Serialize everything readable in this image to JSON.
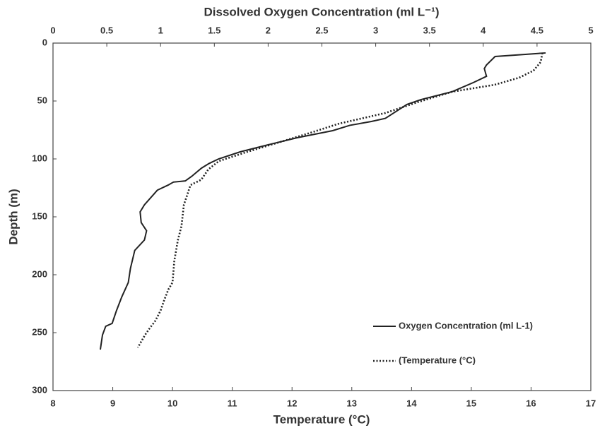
{
  "chart_data": {
    "type": "line",
    "x2label": "Dissolved Oxygen Concentration (ml L⁻¹)",
    "xlabel": "Temperature (°C)",
    "ylabel": "Depth (m)",
    "xlim": [
      8,
      17
    ],
    "xticks": [
      8,
      9,
      10,
      11,
      12,
      13,
      14,
      15,
      16,
      17
    ],
    "x2lim": [
      0,
      5
    ],
    "x2ticks": [
      0,
      0.5,
      1,
      1.5,
      2,
      2.5,
      3,
      3.5,
      4,
      4.5,
      5
    ],
    "ylim": [
      0,
      300
    ],
    "yticks": [
      0,
      50,
      100,
      150,
      200,
      250,
      300
    ],
    "y_inverted": true,
    "legend": "lower right",
    "series": [
      {
        "name": "Oxygen Concentration (ml L-1)",
        "color": "#222222",
        "line_style": "solid",
        "axis": "x2",
        "x": [
          4.58,
          4.11,
          4.03,
          4.01,
          4.03,
          3.91,
          3.71,
          3.42,
          3.29,
          3.09,
          2.96,
          2.76,
          2.6,
          2.27,
          2.0,
          1.74,
          1.54,
          1.45,
          1.38,
          1.29,
          1.23,
          1.12,
          1.07,
          0.97,
          0.85,
          0.81,
          0.82,
          0.87,
          0.85,
          0.76,
          0.72,
          0.7,
          0.64,
          0.59,
          0.55,
          0.49,
          0.46,
          0.44
        ],
        "values": [
          8.5,
          11.6,
          18.9,
          22,
          28.7,
          34,
          42,
          48.8,
          53,
          65,
          67.7,
          71,
          75.6,
          81.7,
          87.8,
          93.9,
          100,
          104,
          108,
          115,
          119,
          120,
          122.6,
          127,
          139.6,
          145.7,
          155,
          162,
          170,
          179,
          194.5,
          206.7,
          219,
          231,
          242,
          244.5,
          252,
          264.6
        ]
      },
      {
        "name": "(Temperature (°C)",
        "color": "#222222",
        "line_style": "dotted",
        "axis": "x",
        "x": [
          16.19,
          16.16,
          16.04,
          15.8,
          15.39,
          14.68,
          14.09,
          13.56,
          12.79,
          12.31,
          11.84,
          11.25,
          10.78,
          10.6,
          10.48,
          10.3,
          10.25,
          10.19,
          10.15,
          10.09,
          10.03,
          10.0,
          9.93,
          9.86,
          9.8,
          9.71,
          9.62,
          9.54,
          9.42
        ],
        "values": [
          8.5,
          16.5,
          23.8,
          29.9,
          36,
          42,
          51.2,
          60.4,
          69.5,
          77.4,
          84.8,
          93.9,
          101.8,
          109,
          118,
          122.6,
          130.5,
          139.6,
          158,
          170,
          188,
          206.7,
          212.8,
          222,
          231,
          240,
          246,
          252,
          262.8
        ]
      }
    ]
  }
}
